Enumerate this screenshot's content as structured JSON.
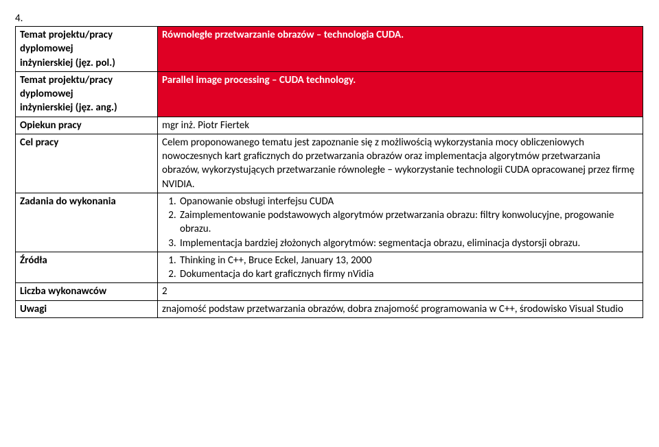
{
  "item_number": "4.",
  "rows": {
    "r0": {
      "label_l1": "Temat projektu/pracy",
      "label_l2": "dyplomowej",
      "label_l3": "inżynierskiej (jęz. pol.)",
      "value": "Równoległe przetwarzanie obrazów – technologia CUDA."
    },
    "r1": {
      "label_l1": "Temat projektu/pracy",
      "label_l2": "dyplomowej",
      "label_l3": "inżynierskiej (jęz. ang.)",
      "value": "Parallel image processing – CUDA technology."
    },
    "r2": {
      "label": "Opiekun pracy",
      "value": "mgr inż. Piotr Fiertek"
    },
    "r3": {
      "label": "Cel pracy",
      "value": "Celem proponowanego tematu jest zapoznanie się z możliwością wykorzystania mocy obliczeniowych nowoczesnych kart graficznych do przetwarzania obrazów oraz implementacja algorytmów przetwarzania obrazów, wykorzystujących przetwarzanie równoległe – wykorzystanie technologii CUDA opracowanej przez firmę NVIDIA."
    },
    "r4": {
      "label": "Zadania do wykonania",
      "items": [
        "Opanowanie obsługi interfejsu CUDA",
        "Zaimplementowanie podstawowych algorytmów przetwarzania obrazu: filtry konwolucyjne, progowanie obrazu.",
        "Implementacja bardziej złożonych algorytmów: segmentacja obrazu, eliminacja dystorsji obrazu."
      ]
    },
    "r5": {
      "label": "Źródła",
      "items": [
        "Thinking in C++, Bruce Eckel, January 13, 2000",
        "Dokumentacja do kart graficznych firmy nVidia"
      ]
    },
    "r6": {
      "label": "Liczba wykonawców",
      "value": "2"
    },
    "r7": {
      "label": "Uwagi",
      "value": "znajomość podstaw przetwarzania obrazów, dobra znajomość programowania w C++, środowisko Visual Studio"
    }
  }
}
